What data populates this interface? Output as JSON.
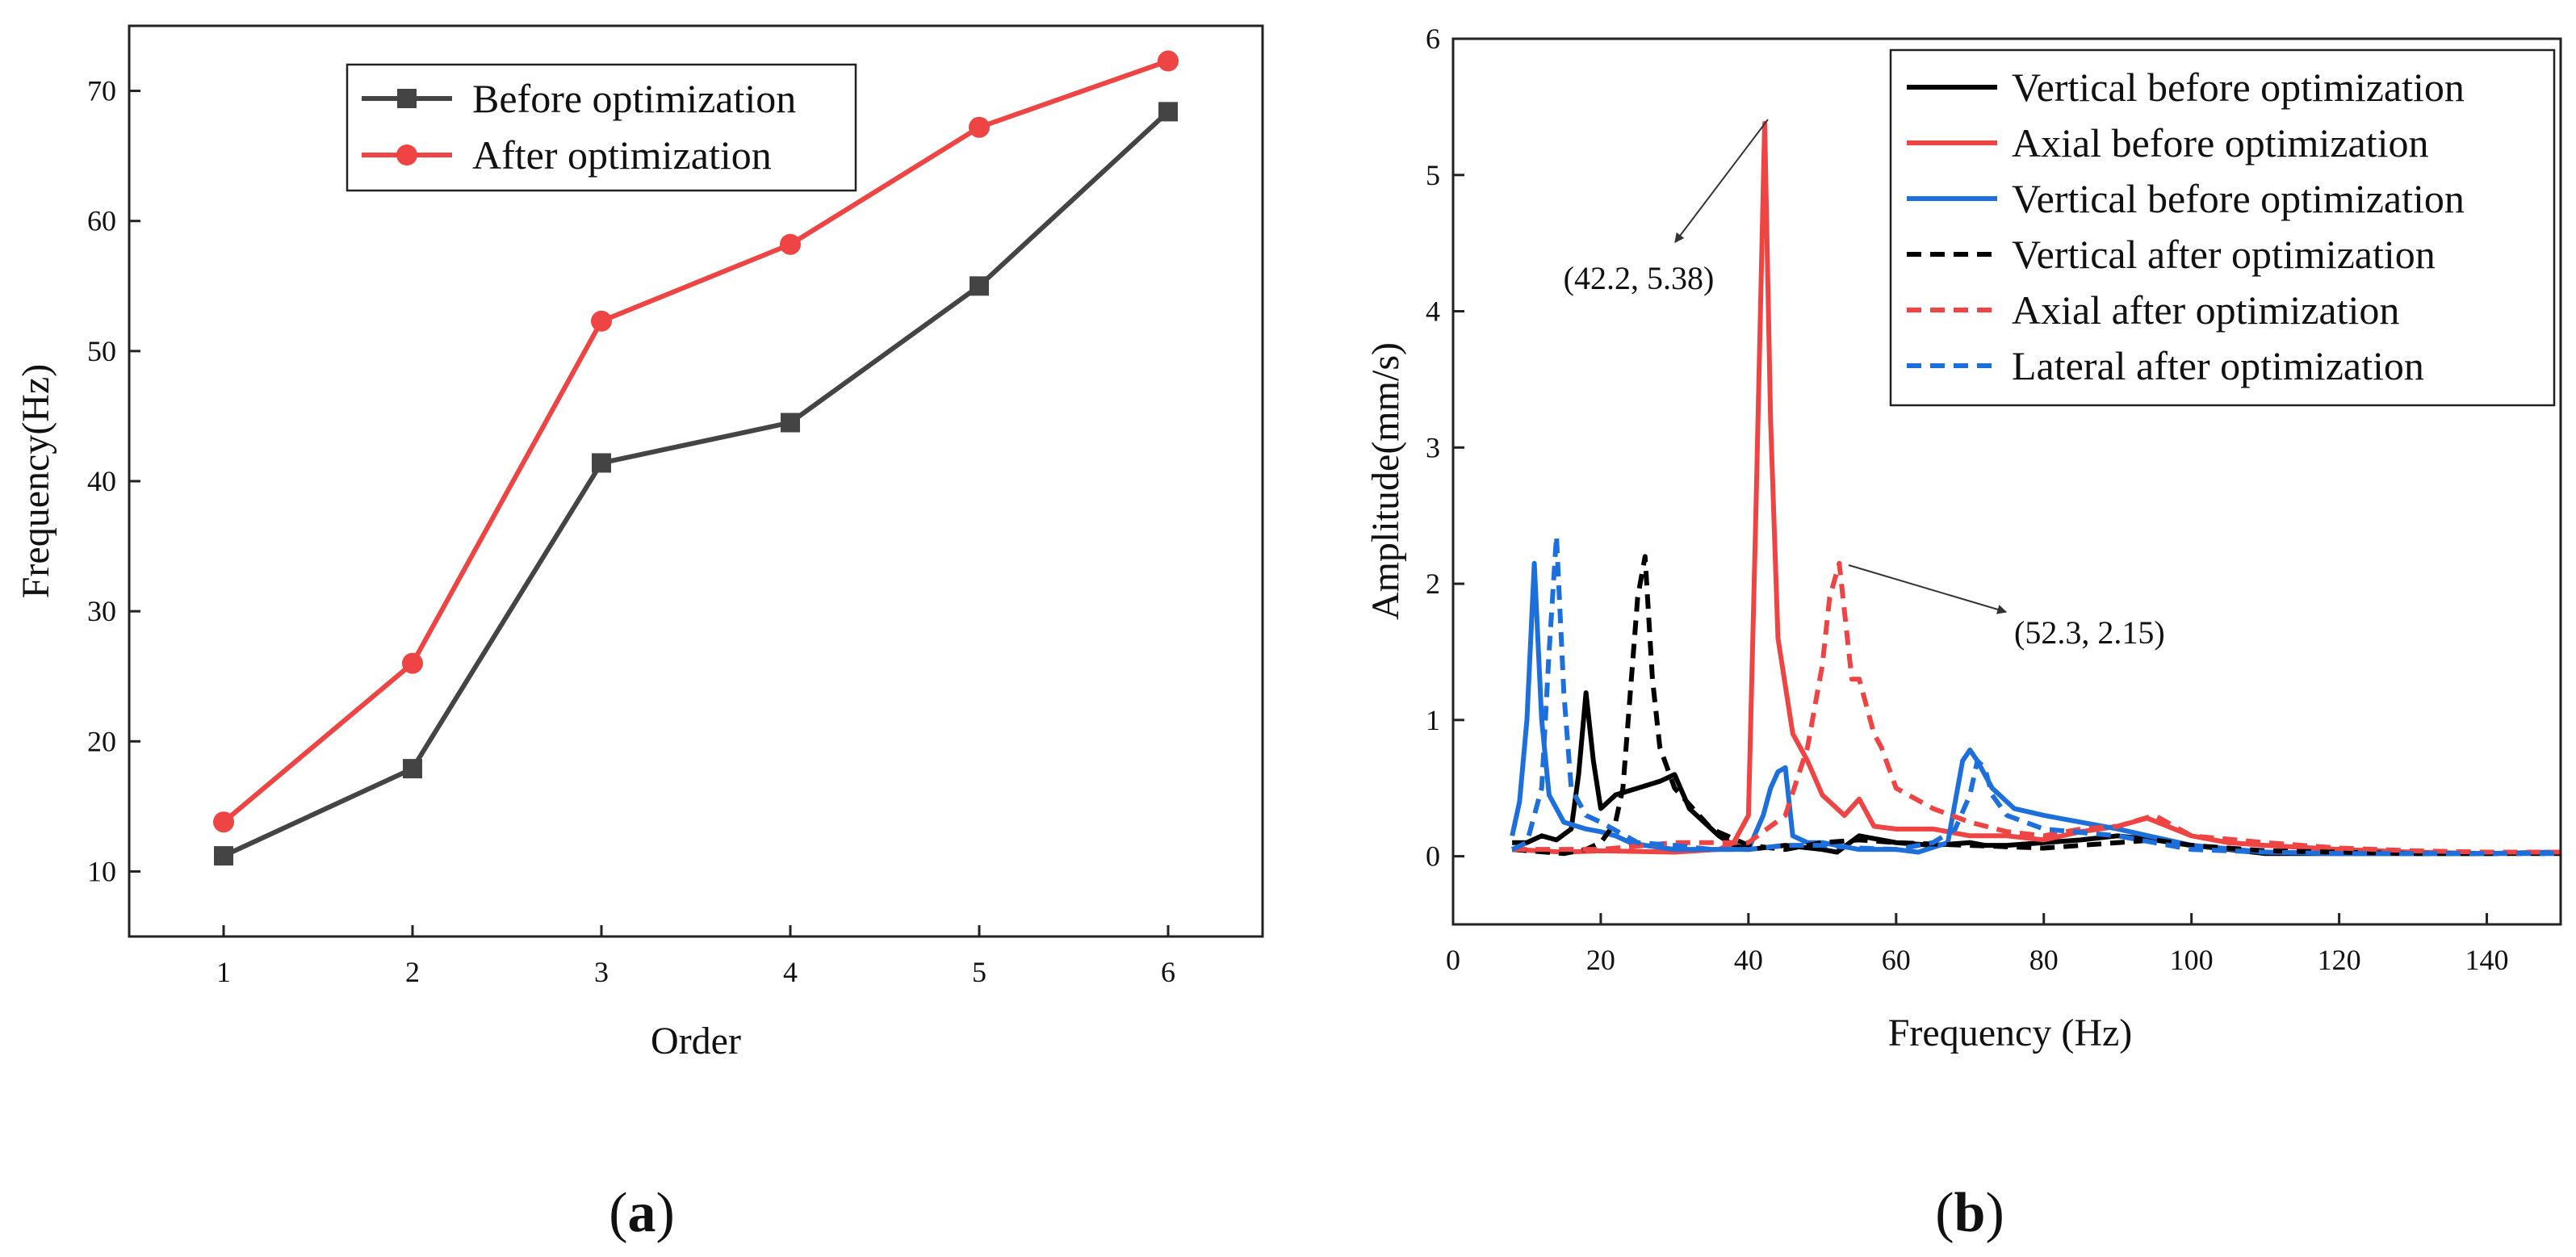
{
  "chart_data": [
    {
      "type": "line",
      "panel_label": "a",
      "xlabel": "Order",
      "ylabel": "Frequency(Hz)",
      "xlim": [
        0.5,
        6.5
      ],
      "ylim": [
        5,
        75
      ],
      "xticks": [
        1,
        2,
        3,
        4,
        5,
        6
      ],
      "yticks": [
        10,
        20,
        30,
        40,
        50,
        60,
        70
      ],
      "grid": false,
      "legend": "top-center",
      "series": [
        {
          "name": "Before optimization",
          "color": "#444444",
          "marker": "square",
          "x": [
            1,
            2,
            3,
            4,
            5,
            6
          ],
          "values": [
            11.2,
            17.9,
            41.4,
            44.5,
            55.0,
            68.4
          ]
        },
        {
          "name": "After optimization",
          "color": "#ef4444",
          "marker": "circle",
          "x": [
            1,
            2,
            3,
            4,
            5,
            6
          ],
          "values": [
            13.8,
            26.0,
            52.3,
            58.2,
            67.2,
            72.3
          ]
        }
      ]
    },
    {
      "type": "line",
      "panel_label": "b",
      "xlabel": "Frequency (Hz)",
      "ylabel": "Amplitude(mm/s)",
      "xlim": [
        0,
        150
      ],
      "ylim": [
        -0.5,
        6
      ],
      "xticks": [
        0,
        20,
        40,
        60,
        80,
        100,
        120,
        140
      ],
      "yticks": [
        0,
        1,
        2,
        3,
        4,
        5,
        6
      ],
      "grid": false,
      "legend": "top-right",
      "series": [
        {
          "name": "Vertical before optimization",
          "color": "#000000",
          "dash": "solid",
          "x": [
            8,
            10,
            12,
            14,
            16,
            17,
            18,
            19,
            20,
            22,
            25,
            28,
            30,
            32,
            34,
            36,
            38,
            40,
            45,
            50,
            52,
            55,
            60,
            65,
            70,
            72,
            75,
            80,
            85,
            90,
            95,
            100,
            105,
            110,
            120,
            130,
            140,
            150
          ],
          "values": [
            0.1,
            0.1,
            0.15,
            0.12,
            0.2,
            0.6,
            1.2,
            0.7,
            0.35,
            0.45,
            0.5,
            0.55,
            0.6,
            0.35,
            0.25,
            0.15,
            0.08,
            0.05,
            0.08,
            0.05,
            0.03,
            0.15,
            0.1,
            0.08,
            0.1,
            0.08,
            0.08,
            0.1,
            0.12,
            0.15,
            0.12,
            0.08,
            0.05,
            0.02,
            0.02,
            0.02,
            0.02,
            0.03
          ]
        },
        {
          "name": "Axial before optimization",
          "color": "#ef4444",
          "dash": "solid",
          "x": [
            8,
            15,
            20,
            30,
            36,
            38,
            40,
            41,
            42.2,
            43,
            44,
            46,
            48,
            50,
            53,
            55,
            57,
            60,
            65,
            70,
            75,
            80,
            85,
            90,
            94,
            100,
            105,
            110,
            120,
            130,
            140,
            150
          ],
          "values": [
            0.05,
            0.03,
            0.04,
            0.03,
            0.05,
            0.1,
            0.3,
            2.5,
            5.38,
            3.2,
            1.6,
            0.9,
            0.7,
            0.45,
            0.3,
            0.42,
            0.22,
            0.2,
            0.2,
            0.15,
            0.15,
            0.12,
            0.18,
            0.22,
            0.28,
            0.15,
            0.1,
            0.08,
            0.05,
            0.03,
            0.02,
            0.03
          ]
        },
        {
          "name": "Vertical before optimization",
          "color": "#1d6fdc",
          "dash": "solid",
          "x": [
            8,
            9,
            10,
            11,
            12,
            13,
            15,
            18,
            20,
            22,
            24,
            26,
            30,
            35,
            40,
            42,
            43,
            44,
            45,
            46,
            48,
            50,
            55,
            60,
            63,
            67,
            68,
            69,
            70,
            71,
            73,
            76,
            80,
            90,
            100,
            110,
            120,
            130,
            140,
            150
          ],
          "values": [
            0.15,
            0.4,
            1.0,
            2.15,
            1.0,
            0.45,
            0.25,
            0.2,
            0.18,
            0.15,
            0.1,
            0.08,
            0.05,
            0.05,
            0.05,
            0.3,
            0.5,
            0.62,
            0.65,
            0.15,
            0.1,
            0.1,
            0.05,
            0.05,
            0.03,
            0.1,
            0.4,
            0.7,
            0.78,
            0.7,
            0.5,
            0.35,
            0.3,
            0.2,
            0.08,
            0.03,
            0.02,
            0.02,
            0.02,
            0.03
          ]
        },
        {
          "name": "Vertical after optimization",
          "color": "#000000",
          "dash": "dashed",
          "x": [
            8,
            15,
            18,
            20,
            22,
            23,
            24,
            25,
            26,
            27,
            28,
            30,
            35,
            40,
            45,
            50,
            55,
            60,
            70,
            80,
            90,
            95,
            100,
            110,
            120,
            130,
            140,
            150
          ],
          "values": [
            0.05,
            0.02,
            0.05,
            0.1,
            0.25,
            0.5,
            1.2,
            1.9,
            2.2,
            1.3,
            0.8,
            0.5,
            0.2,
            0.08,
            0.05,
            0.1,
            0.12,
            0.1,
            0.08,
            0.06,
            0.1,
            0.12,
            0.08,
            0.04,
            0.03,
            0.02,
            0.02,
            0.02
          ]
        },
        {
          "name": "Axial after optimization",
          "color": "#ef4444",
          "dash": "dashed",
          "x": [
            8,
            15,
            20,
            30,
            40,
            45,
            48,
            50,
            51,
            52.3,
            53,
            54,
            55,
            57,
            58,
            60,
            65,
            70,
            75,
            80,
            85,
            90,
            95,
            100,
            110,
            120,
            130,
            140,
            150
          ],
          "values": [
            0.05,
            0.05,
            0.05,
            0.1,
            0.1,
            0.3,
            0.8,
            1.4,
            1.9,
            2.15,
            1.8,
            1.3,
            1.3,
            0.9,
            0.8,
            0.5,
            0.35,
            0.25,
            0.18,
            0.15,
            0.2,
            0.22,
            0.3,
            0.15,
            0.1,
            0.06,
            0.04,
            0.03,
            0.03
          ]
        },
        {
          "name": "Lateral after optimization",
          "color": "#1d6fdc",
          "dash": "dashed",
          "x": [
            8,
            10,
            12,
            13,
            14,
            15,
            16,
            18,
            20,
            25,
            30,
            35,
            40,
            45,
            50,
            55,
            60,
            65,
            68,
            70,
            71,
            72,
            73,
            75,
            80,
            90,
            100,
            110,
            120,
            130,
            140,
            150
          ],
          "values": [
            0.05,
            0.1,
            0.5,
            1.5,
            2.35,
            1.2,
            0.5,
            0.3,
            0.25,
            0.1,
            0.08,
            0.05,
            0.05,
            0.08,
            0.08,
            0.06,
            0.05,
            0.1,
            0.2,
            0.45,
            0.7,
            0.65,
            0.45,
            0.3,
            0.2,
            0.15,
            0.05,
            0.03,
            0.02,
            0.02,
            0.02,
            0.02
          ]
        }
      ],
      "annotations": [
        {
          "text": "(42.2, 5.38)",
          "x": 42.2,
          "y": 5.38
        },
        {
          "text": "(52.3, 2.15)",
          "x": 52.3,
          "y": 2.15
        }
      ]
    }
  ]
}
